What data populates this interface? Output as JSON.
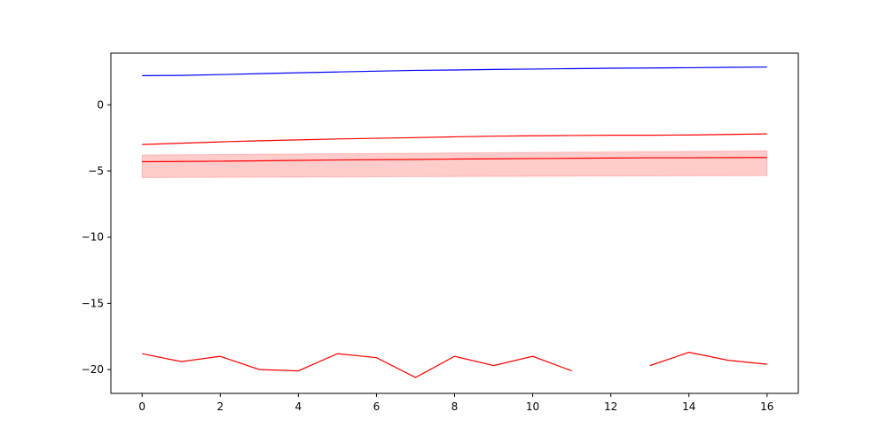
{
  "chart_data": {
    "type": "line",
    "title": "",
    "xlabel": "",
    "ylabel": "",
    "xlim": [
      -0.8,
      16.8
    ],
    "ylim": [
      -21.8,
      3.9
    ],
    "grid": false,
    "x_ticks": [
      0,
      2,
      4,
      6,
      8,
      10,
      12,
      14,
      16
    ],
    "x_tick_labels": [
      "0",
      "2",
      "4",
      "6",
      "8",
      "10",
      "12",
      "14",
      "16"
    ],
    "y_ticks": [
      0,
      -5,
      -10,
      -15,
      -20
    ],
    "y_tick_labels": [
      "0",
      "−5",
      "−10",
      "−15",
      "−20"
    ],
    "x": [
      0,
      1,
      2,
      3,
      4,
      5,
      6,
      7,
      8,
      9,
      10,
      11,
      12,
      13,
      14,
      15,
      16
    ],
    "series": [
      {
        "color": "#0000ff",
        "values": [
          2.2,
          2.22,
          2.28,
          2.35,
          2.42,
          2.48,
          2.54,
          2.6,
          2.63,
          2.67,
          2.7,
          2.73,
          2.76,
          2.78,
          2.8,
          2.83,
          2.85
        ]
      },
      {
        "color": "#ff0000",
        "values": [
          -3.0,
          -2.9,
          -2.8,
          -2.72,
          -2.65,
          -2.58,
          -2.53,
          -2.48,
          -2.42,
          -2.37,
          -2.34,
          -2.32,
          -2.3,
          -2.3,
          -2.28,
          -2.24,
          -2.2
        ]
      },
      {
        "color": "#ff0000",
        "values": [
          -4.3,
          -4.28,
          -4.26,
          -4.23,
          -4.2,
          -4.17,
          -4.15,
          -4.13,
          -4.1,
          -4.08,
          -4.06,
          -4.04,
          -4.02,
          -4.0,
          -4.0,
          -3.99,
          -3.98
        ],
        "band_lower": [
          -5.5,
          -5.49,
          -5.48,
          -5.47,
          -5.46,
          -5.45,
          -5.44,
          -5.43,
          -5.42,
          -5.41,
          -5.4,
          -5.39,
          -5.38,
          -5.37,
          -5.36,
          -5.35,
          -5.35
        ],
        "band_upper": [
          -3.8,
          -3.78,
          -3.76,
          -3.74,
          -3.72,
          -3.7,
          -3.68,
          -3.66,
          -3.64,
          -3.62,
          -3.6,
          -3.58,
          -3.56,
          -3.54,
          -3.52,
          -3.5,
          -3.48
        ],
        "band_color": "#ff0000",
        "band_opacity": 0.2
      },
      {
        "color": "#ff0000",
        "values": [
          -18.8,
          -19.4,
          -19.0,
          -20.0,
          -20.1,
          -18.8,
          -19.1,
          -20.6,
          -19.0,
          -19.7,
          -19.0,
          -20.1,
          null,
          -19.7,
          -18.7,
          -19.3,
          -19.6
        ]
      }
    ]
  }
}
